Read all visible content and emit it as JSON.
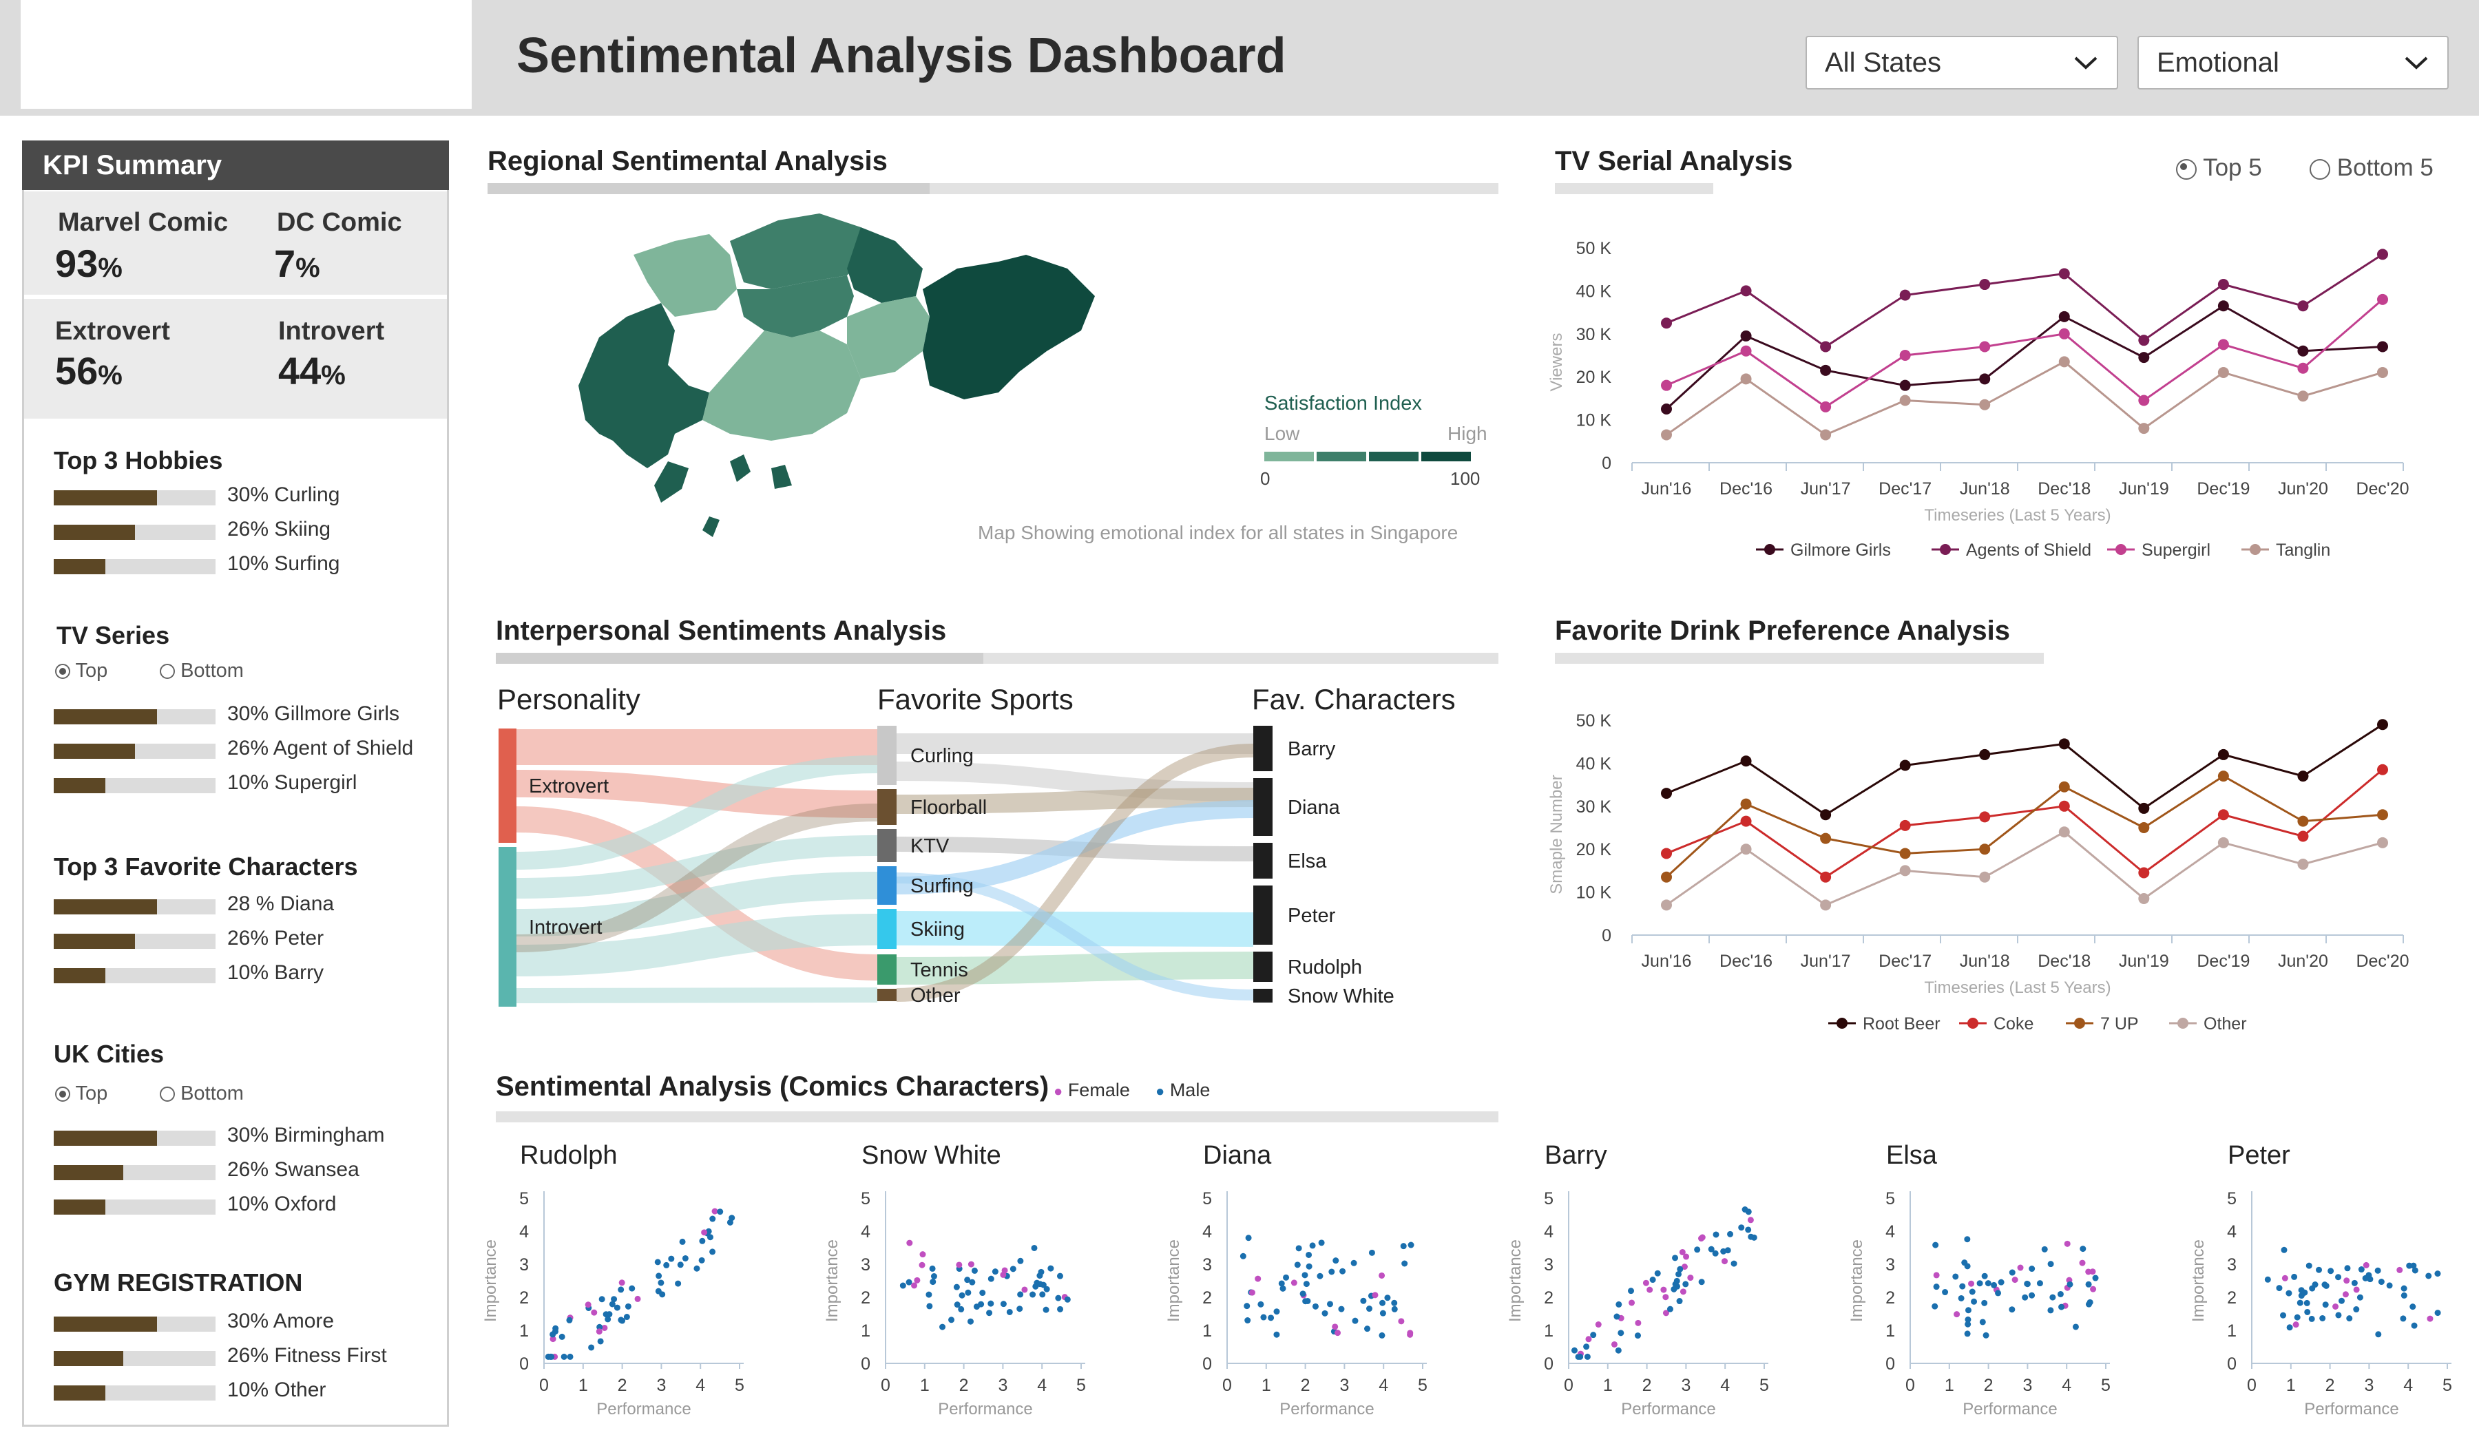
{
  "header": {
    "title": "Sentimental Analysis Dashboard",
    "state_select": "All States",
    "mode_select": "Emotional"
  },
  "kpi": {
    "title": "KPI Summary",
    "marvel_label": "Marvel Comic",
    "marvel_value": "93",
    "dc_label": "DC Comic",
    "dc_value": "7",
    "extrovert_label": "Extrovert",
    "extrovert_value": "56",
    "introvert_label": "Introvert",
    "introvert_value": "44",
    "percent": "%"
  },
  "sections": {
    "hobbies": {
      "title": "Top 3 Hobbies",
      "items": [
        {
          "label": "30% Curling",
          "pct": 0.64
        },
        {
          "label": "26% Skiing",
          "pct": 0.5
        },
        {
          "label": "10% Surfing",
          "pct": 0.32
        }
      ]
    },
    "tv": {
      "title": "TV Series",
      "top": "Top",
      "bottom": "Bottom",
      "items": [
        {
          "label": "30% Gillmore Girls",
          "pct": 0.64
        },
        {
          "label": "26% Agent of Shield",
          "pct": 0.5
        },
        {
          "label": "10% Supergirl",
          "pct": 0.32
        }
      ]
    },
    "characters": {
      "title": "Top 3 Favorite Characters",
      "items": [
        {
          "label": "28 % Diana",
          "pct": 0.64
        },
        {
          "label": "26% Peter",
          "pct": 0.5
        },
        {
          "label": "10% Barry",
          "pct": 0.32
        }
      ]
    },
    "cities": {
      "title": "UK Cities",
      "top": "Top",
      "bottom": "Bottom",
      "items": [
        {
          "label": "30% Birmingham",
          "pct": 0.64
        },
        {
          "label": "26% Swansea",
          "pct": 0.43
        },
        {
          "label": "10% Oxford",
          "pct": 0.32
        }
      ]
    },
    "gym": {
      "title": "GYM REGISTRATION",
      "items": [
        {
          "label": "30% Amore",
          "pct": 0.64
        },
        {
          "label": "26% Fitness First",
          "pct": 0.43
        },
        {
          "label": "10% Other",
          "pct": 0.32
        }
      ]
    }
  },
  "regional": {
    "title": "Regional Sentimental Analysis",
    "legend_title": "Satisfaction Index",
    "low": "Low",
    "high": "High",
    "scale_min": "0",
    "scale_max": "100",
    "caption": "Map Showing emotional index  for all states in Singapore",
    "colors": [
      "#7fb59a",
      "#3e7f6a",
      "#1f5f50",
      "#0f4a3e"
    ]
  },
  "tv_serial": {
    "title": "TV Serial Analysis",
    "top5": "Top 5",
    "bottom5": "Bottom 5"
  },
  "interpersonal": {
    "title": "Interpersonal Sentiments Analysis",
    "col1": "Personality",
    "col2": "Favorite Sports",
    "col3": "Fav. Characters",
    "personality": [
      "Extrovert",
      "Introvert"
    ],
    "sports": [
      "Curling",
      "Floorball",
      "KTV",
      "Surfing",
      "Skiing",
      "Tennis",
      "Other"
    ],
    "characters": [
      "Barry",
      "Diana",
      "Elsa",
      "Peter",
      "Rudolph",
      "Snow White"
    ]
  },
  "drink": {
    "title": "Favorite Drink Preference Analysis"
  },
  "comics": {
    "title": "Sentimental Analysis (Comics Characters)",
    "female": "Female",
    "male": "Male",
    "female_color": "#c04fc0",
    "male_color": "#1a6fae",
    "panels": [
      "Rudolph",
      "Snow White",
      "Diana",
      "Barry",
      "Elsa",
      "Peter"
    ],
    "xlabel": "Performance",
    "ylabel": "Importance"
  },
  "chart_data": [
    {
      "type": "line",
      "title": "TV Serial Analysis",
      "xlabel": "Timeseries (Last 5 Years)",
      "ylabel": "Viewers",
      "categories": [
        "Jun'16",
        "Dec'16",
        "Jun'17",
        "Dec'17",
        "Jun'18",
        "Dec'18",
        "Jun'19",
        "Dec'19",
        "Jun'20",
        "Dec'20"
      ],
      "y_ticks": [
        "0",
        "10 K",
        "20 K",
        "30 K",
        "40 K",
        "50 K"
      ],
      "ylim": [
        0,
        50000
      ],
      "legend_position": "bottom",
      "series": [
        {
          "name": "Gilmore Girls",
          "color": "#3a0a1e",
          "values": [
            12500,
            29500,
            21500,
            18000,
            19500,
            34000,
            24500,
            36500,
            26000,
            27000
          ]
        },
        {
          "name": "Agents of Shield",
          "color": "#7a1d55",
          "values": [
            32500,
            40000,
            27000,
            39000,
            41500,
            44000,
            28500,
            41500,
            36500,
            48500
          ]
        },
        {
          "name": "Supergirl",
          "color": "#c2408f",
          "values": [
            18000,
            26000,
            13000,
            25000,
            27000,
            30000,
            14500,
            27500,
            22000,
            38000
          ]
        },
        {
          "name": "Tanglin",
          "color": "#b8968e",
          "values": [
            6500,
            19500,
            6500,
            14500,
            13500,
            23500,
            8000,
            21000,
            15500,
            21000
          ]
        }
      ]
    },
    {
      "type": "line",
      "title": "Favorite Drink Preference Analysis",
      "xlabel": "Timeseries (Last 5 Years)",
      "ylabel": "Smaple Number",
      "categories": [
        "Jun'16",
        "Dec'16",
        "Jun'17",
        "Dec'17",
        "Jun'18",
        "Dec'18",
        "Jun'19",
        "Dec'19",
        "Jun'20",
        "Dec'20"
      ],
      "y_ticks": [
        "0",
        "10 K",
        "20 K",
        "30 K",
        "40 K",
        "50 K"
      ],
      "ylim": [
        0,
        50000
      ],
      "legend_position": "bottom",
      "series": [
        {
          "name": "Root Beer",
          "color": "#2a0808",
          "values": [
            33000,
            40500,
            28000,
            39500,
            42000,
            44500,
            29500,
            42000,
            37000,
            49000
          ]
        },
        {
          "name": "Coke",
          "color": "#cc2b2b",
          "values": [
            19000,
            26500,
            13500,
            25500,
            27500,
            30000,
            14500,
            28000,
            23000,
            38500
          ]
        },
        {
          "name": "7 UP",
          "color": "#a0561a",
          "values": [
            13500,
            30500,
            22500,
            19000,
            20000,
            34500,
            25000,
            37000,
            26500,
            28000
          ]
        },
        {
          "name": "Other",
          "color": "#bfa7a2",
          "values": [
            7000,
            20000,
            7000,
            15000,
            13500,
            24000,
            8500,
            21500,
            16500,
            21500
          ]
        }
      ]
    },
    {
      "type": "scatter",
      "title": "Sentimental Analysis (Comics Characters)",
      "panels": [
        "Rudolph",
        "Snow White",
        "Diana",
        "Barry",
        "Elsa",
        "Peter"
      ],
      "xlim": [
        0,
        5
      ],
      "ylim": [
        0,
        5
      ],
      "xlabel": "Performance",
      "ylabel": "Importance",
      "series_names": [
        "Female",
        "Male"
      ]
    }
  ]
}
